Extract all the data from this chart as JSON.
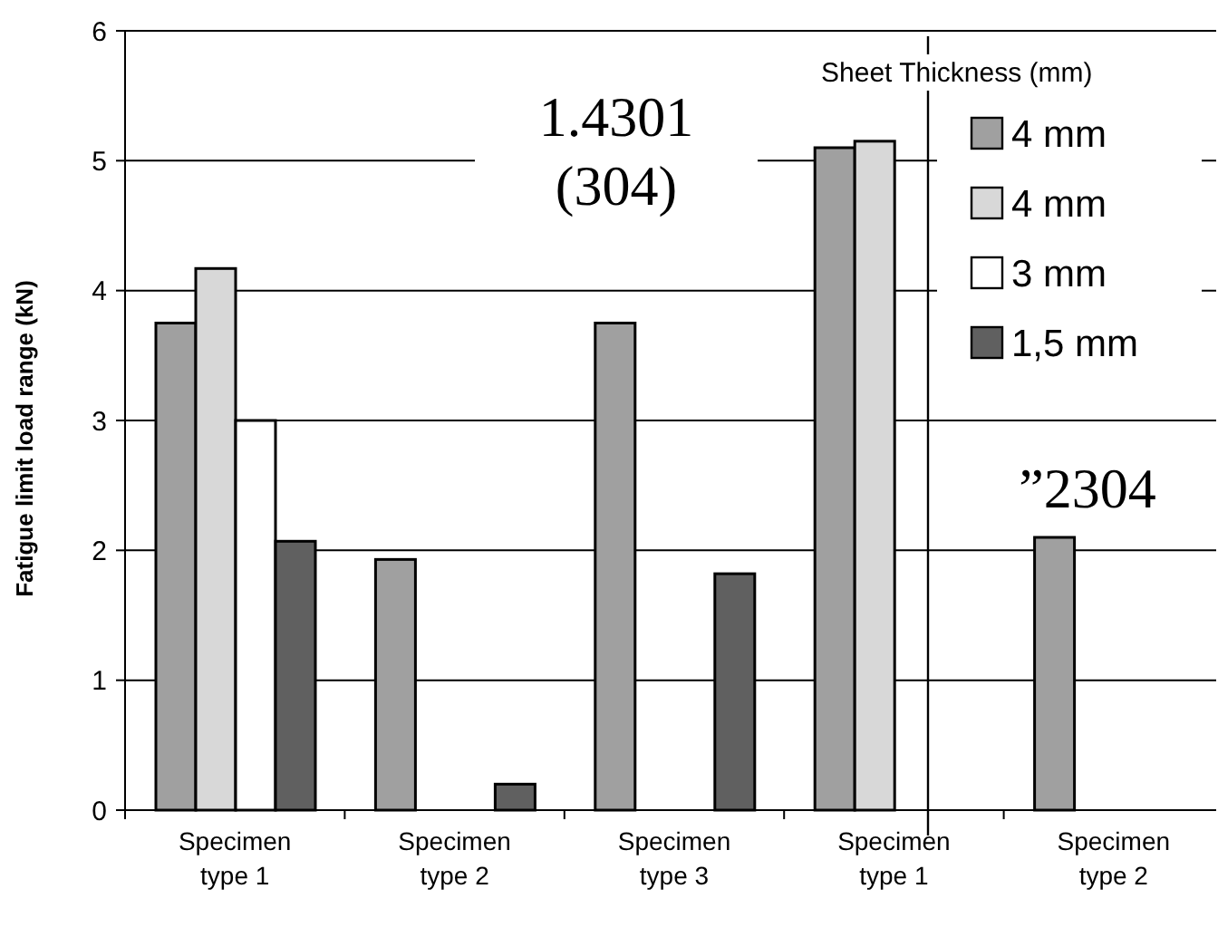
{
  "chart_data": {
    "type": "bar",
    "ylabel": "Fatigue limit load range  (kN)",
    "legend_title": "Sheet Thickness (mm)",
    "categories": [
      "Specimen type 1",
      "Specimen type 2",
      "Specimen type 3",
      "Specimen type 1",
      "Specimen type 2"
    ],
    "series": [
      {
        "name": "4 mm",
        "color": "#a0a0a0",
        "values": [
          3.75,
          1.93,
          3.75,
          5.1,
          2.1
        ]
      },
      {
        "name": "4 mm",
        "color": "#d8d8d8",
        "values": [
          4.17,
          null,
          null,
          5.15,
          null
        ]
      },
      {
        "name": "3 mm",
        "color": "#ffffff",
        "values": [
          3.0,
          null,
          null,
          null,
          null
        ]
      },
      {
        "name": "1,5 mm",
        "color": "#606060",
        "values": [
          2.07,
          0.2,
          1.82,
          null,
          null
        ]
      }
    ],
    "ylim": [
      0,
      6
    ],
    "yticks": [
      0,
      1,
      2,
      3,
      4,
      5,
      6
    ],
    "grid": "y",
    "legend": "top right",
    "annotations": [
      "1.4301 (304)",
      "”2304"
    ]
  }
}
